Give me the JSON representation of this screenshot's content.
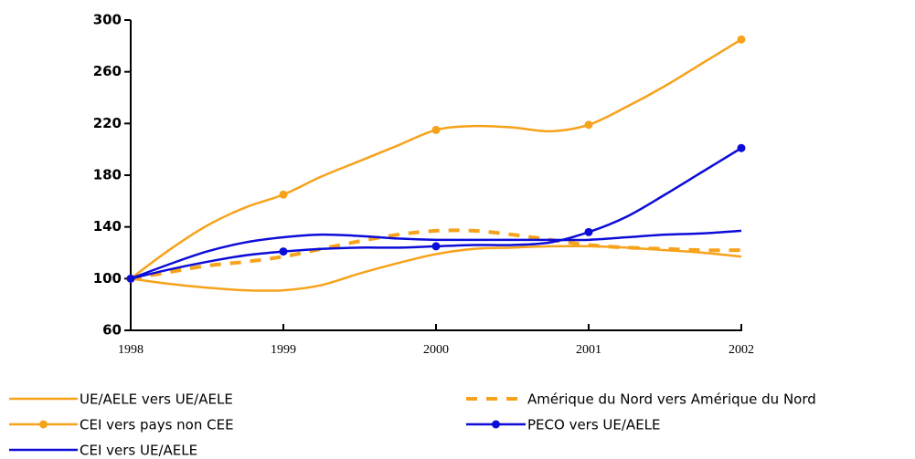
{
  "chart_data": {
    "type": "line",
    "x": [
      1998,
      1998.25,
      1998.5,
      1998.75,
      1999,
      1999.25,
      1999.5,
      1999.75,
      2000,
      2000.25,
      2000.5,
      2000.75,
      2001,
      2001.25,
      2001.5,
      2001.75,
      2002
    ],
    "xlim": [
      1998,
      2002
    ],
    "xticks": [
      1998,
      1999,
      2000,
      2001,
      2002
    ],
    "ylim": [
      60,
      300
    ],
    "yticks": [
      60,
      100,
      140,
      180,
      220,
      260,
      300
    ],
    "series": [
      {
        "name": "UE/AELE vers UE/AELE",
        "color": "#f7a21b",
        "dash": false,
        "marker": false,
        "values": [
          100,
          96,
          93,
          91,
          91,
          95,
          104,
          112,
          119,
          123,
          124,
          125,
          125,
          124,
          122,
          120,
          117
        ]
      },
      {
        "name": "Amérique du Nord vers Amérique du Nord",
        "color": "#f7a21b",
        "dash": true,
        "marker": false,
        "values": [
          100,
          105,
          110,
          113,
          117,
          123,
          129,
          134,
          137,
          137,
          134,
          130,
          126,
          124,
          123,
          122,
          122
        ]
      },
      {
        "name": "CEI vers pays non CEE",
        "color": "#f7a21b",
        "dash": false,
        "marker": true,
        "values": [
          100,
          122,
          141,
          155,
          165,
          179,
          191,
          203,
          215,
          218,
          217,
          214,
          219,
          233,
          249,
          267,
          285
        ]
      },
      {
        "name": "PECO vers UE/AELE",
        "color": "#0c0cd8",
        "dash": false,
        "marker": true,
        "values": [
          100,
          107,
          113,
          118,
          121,
          123,
          124,
          124,
          125,
          126,
          126,
          128,
          136,
          148,
          165,
          183,
          201
        ]
      },
      {
        "name": "CEI vers UE/AELE",
        "color": "#0c0cd8",
        "dash": false,
        "marker": false,
        "values": [
          100,
          111,
          121,
          128,
          132,
          134,
          133,
          131,
          130,
          130,
          130,
          130,
          130,
          132,
          134,
          135,
          137
        ]
      }
    ]
  }
}
